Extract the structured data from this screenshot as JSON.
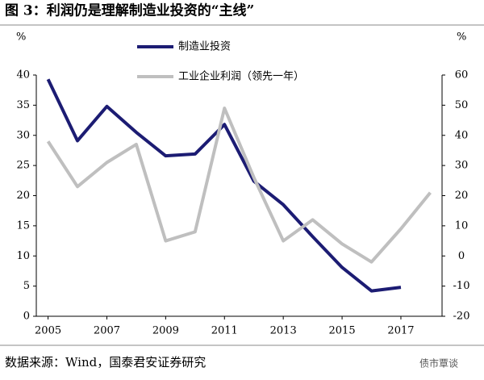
{
  "title": "图 3：利润仍是理解制造业投资的“主线”",
  "source": "数据来源：Wind，国泰君安证券研究",
  "watermark": "债市覃谈",
  "chart_data": {
    "type": "line",
    "y_label": "%",
    "y2_label": "%",
    "x": [
      2005,
      2006,
      2007,
      2008,
      2009,
      2010,
      2011,
      2012,
      2013,
      2014,
      2015,
      2016,
      2017,
      2018
    ],
    "xlim": [
      2004.6,
      2018.4
    ],
    "xticks": [
      2005,
      2007,
      2009,
      2011,
      2013,
      2015,
      2017
    ],
    "ylim": [
      0,
      40
    ],
    "yticks": [
      0,
      5,
      10,
      15,
      20,
      25,
      30,
      35,
      40
    ],
    "y2lim": [
      -20,
      60
    ],
    "y2ticks": [
      -20,
      -10,
      0,
      10,
      20,
      30,
      40,
      50,
      60
    ],
    "series": [
      {
        "name": "制造业投资",
        "color": "#1c1c73",
        "values": [
          39.3,
          29.1,
          34.8,
          30.5,
          26.6,
          26.9,
          31.8,
          22.4,
          18.5,
          13.2,
          8.1,
          4.2,
          4.8,
          null
        ]
      },
      {
        "name": "工业企业利润（领先一年）",
        "color": "#bfbfbf",
        "axis": "y2",
        "values": [
          38,
          23,
          31,
          37,
          5,
          8,
          49,
          26,
          5,
          12,
          4,
          -2,
          9,
          21
        ]
      }
    ]
  }
}
